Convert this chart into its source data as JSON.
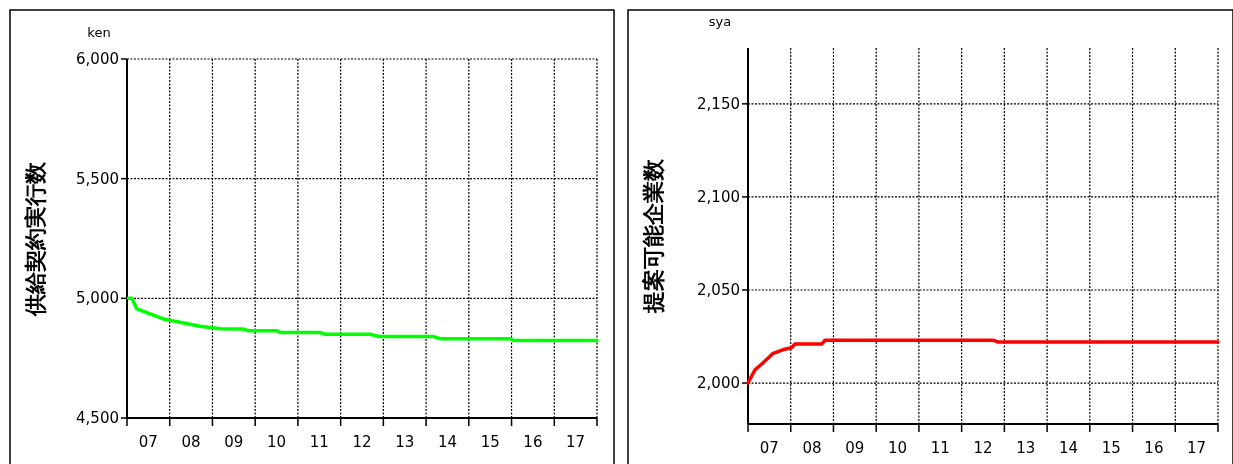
{
  "chart_data": [
    {
      "type": "line",
      "ylabel": "供給契約実行数",
      "annotations": [
        "ken"
      ],
      "xlim": [
        6.5,
        17.5
      ],
      "ylim": [
        4500,
        6000
      ],
      "xticks": [
        {
          "value": 6.5,
          "label": null
        },
        {
          "value": 7,
          "label": "07"
        },
        {
          "value": 7.5,
          "label": null
        },
        {
          "value": 8,
          "label": "08"
        },
        {
          "value": 8.5,
          "label": null
        },
        {
          "value": 9,
          "label": "09"
        },
        {
          "value": 9.5,
          "label": null
        },
        {
          "value": 10,
          "label": "10"
        },
        {
          "value": 10.5,
          "label": null
        },
        {
          "value": 11,
          "label": "11"
        },
        {
          "value": 11.5,
          "label": null
        },
        {
          "value": 12,
          "label": "12"
        },
        {
          "value": 12.5,
          "label": null
        },
        {
          "value": 13,
          "label": "13"
        },
        {
          "value": 13.5,
          "label": null
        },
        {
          "value": 14,
          "label": "14"
        },
        {
          "value": 14.5,
          "label": null
        },
        {
          "value": 15,
          "label": "15"
        },
        {
          "value": 15.5,
          "label": null
        },
        {
          "value": 16,
          "label": "16"
        },
        {
          "value": 16.5,
          "label": null
        },
        {
          "value": 17,
          "label": "17"
        },
        {
          "value": 17.5,
          "label": null
        }
      ],
      "yticks": [
        {
          "value": 4500,
          "label": "4,500"
        },
        {
          "value": 5000,
          "label": "5,000"
        },
        {
          "value": 5500,
          "label": "5,500"
        },
        {
          "value": 6000,
          "label": "6,000"
        }
      ],
      "grid": true,
      "x": [
        6.53,
        6.61,
        6.73,
        7.04,
        7.35,
        7.51,
        7.74,
        8.21,
        8.68,
        9.22,
        9.34,
        10.01,
        10.08,
        11.02,
        11.14,
        12.19,
        12.39,
        13.67,
        13.83,
        15.47,
        15.55,
        17.5
      ],
      "series": [
        {
          "color": "#00ff00",
          "values": [
            5000,
            5000,
            4956,
            4935,
            4914,
            4908,
            4900,
            4883,
            4873,
            4872,
            4865,
            4865,
            4857,
            4857,
            4850,
            4850,
            4841,
            4841,
            4831,
            4831,
            4824,
            4824
          ]
        }
      ]
    },
    {
      "type": "line",
      "ylabel": "提案可能企業数",
      "annotations": [
        "sya"
      ],
      "xlim": [
        6.5,
        17.5
      ],
      "ylim": [
        1978,
        2180
      ],
      "xticks": [
        {
          "value": 6.5,
          "label": null
        },
        {
          "value": 7,
          "label": "07"
        },
        {
          "value": 7.5,
          "label": null
        },
        {
          "value": 8,
          "label": "08"
        },
        {
          "value": 8.5,
          "label": null
        },
        {
          "value": 9,
          "label": "09"
        },
        {
          "value": 9.5,
          "label": null
        },
        {
          "value": 10,
          "label": "10"
        },
        {
          "value": 10.5,
          "label": null
        },
        {
          "value": 11,
          "label": "11"
        },
        {
          "value": 11.5,
          "label": null
        },
        {
          "value": 12,
          "label": "12"
        },
        {
          "value": 12.5,
          "label": null
        },
        {
          "value": 13,
          "label": "13"
        },
        {
          "value": 13.5,
          "label": null
        },
        {
          "value": 14,
          "label": "14"
        },
        {
          "value": 14.5,
          "label": null
        },
        {
          "value": 15,
          "label": "15"
        },
        {
          "value": 15.5,
          "label": null
        },
        {
          "value": 16,
          "label": "16"
        },
        {
          "value": 16.5,
          "label": null
        },
        {
          "value": 17,
          "label": "17"
        },
        {
          "value": 17.5,
          "label": null
        }
      ],
      "yticks": [
        {
          "value": 2000,
          "label": "2,000"
        },
        {
          "value": 2050,
          "label": "2,050"
        },
        {
          "value": 2100,
          "label": "2,100"
        },
        {
          "value": 2150,
          "label": "2,150"
        }
      ],
      "grid": true,
      "x": [
        6.5,
        6.66,
        6.86,
        7.09,
        7.33,
        7.52,
        7.6,
        7.83,
        8.23,
        8.3,
        12.24,
        12.36,
        17.5
      ],
      "series": [
        {
          "color": "#ff0000",
          "values": [
            2000,
            2007,
            2011,
            2016,
            2018,
            2019,
            2021,
            2021,
            2021,
            2023,
            2023,
            2022,
            2022
          ]
        }
      ]
    }
  ]
}
